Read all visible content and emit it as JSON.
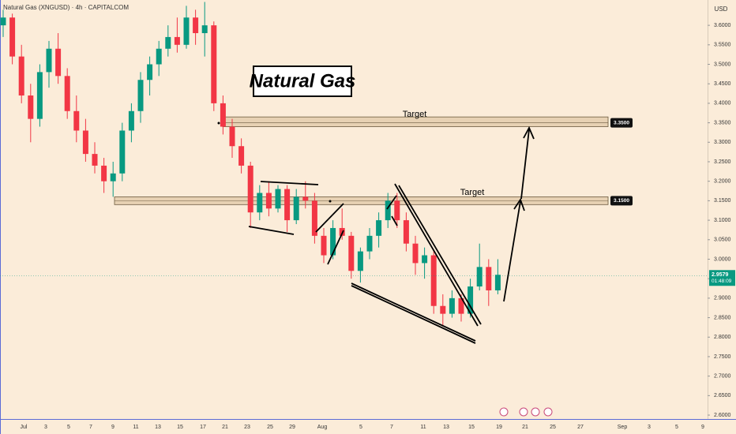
{
  "chart_data": {
    "type": "candlestick",
    "title": "Natural Gas (XNGUSD) · 4h · CAPITALCOM",
    "currency": "USD",
    "annotation": "Natural Gas",
    "up_color": "#089981",
    "down_color": "#f23645",
    "ylim": [
      2.592,
      3.665
    ],
    "yticks": [
      {
        "value": 2.6,
        "label": "2.6000"
      },
      {
        "value": 2.65,
        "label": "2.6500"
      },
      {
        "value": 2.7,
        "label": "2.7000"
      },
      {
        "value": 2.75,
        "label": "2.7500"
      },
      {
        "value": 2.8,
        "label": "2.8000"
      },
      {
        "value": 2.85,
        "label": "2.8500"
      },
      {
        "value": 2.9,
        "label": "2.9000"
      },
      {
        "value": 2.95,
        "label": "2.9500"
      },
      {
        "value": 3.0,
        "label": "3.0000"
      },
      {
        "value": 3.05,
        "label": "3.0500"
      },
      {
        "value": 3.1,
        "label": "3.1000"
      },
      {
        "value": 3.15,
        "label": "3.1500"
      },
      {
        "value": 3.2,
        "label": "3.2000"
      },
      {
        "value": 3.25,
        "label": "3.2500"
      },
      {
        "value": 3.3,
        "label": "3.3000"
      },
      {
        "value": 3.35,
        "label": "3.3500"
      },
      {
        "value": 3.4,
        "label": "3.4000"
      },
      {
        "value": 3.45,
        "label": "3.4500"
      },
      {
        "value": 3.5,
        "label": "3.5000"
      },
      {
        "value": 3.55,
        "label": "3.5500"
      },
      {
        "value": 3.6,
        "label": "3.6000"
      }
    ],
    "xticks": [
      "Jul",
      "3",
      "5",
      "7",
      "9",
      "11",
      "13",
      "15",
      "17",
      "21",
      "23",
      "25",
      "29",
      "Aug",
      "5",
      "7",
      "11",
      "13",
      "15",
      "19",
      "21",
      "25",
      "27",
      "Sep",
      "3",
      "5",
      "9"
    ],
    "candles": [
      [
        3.6,
        3.64,
        3.57,
        3.62
      ],
      [
        3.62,
        3.63,
        3.5,
        3.52
      ],
      [
        3.52,
        3.55,
        3.4,
        3.42
      ],
      [
        3.42,
        3.45,
        3.3,
        3.36
      ],
      [
        3.36,
        3.5,
        3.34,
        3.48
      ],
      [
        3.48,
        3.56,
        3.44,
        3.54
      ],
      [
        3.54,
        3.58,
        3.45,
        3.47
      ],
      [
        3.47,
        3.49,
        3.36,
        3.38
      ],
      [
        3.38,
        3.42,
        3.3,
        3.33
      ],
      [
        3.33,
        3.36,
        3.25,
        3.27
      ],
      [
        3.27,
        3.3,
        3.22,
        3.24
      ],
      [
        3.24,
        3.26,
        3.17,
        3.2
      ],
      [
        3.2,
        3.25,
        3.16,
        3.22
      ],
      [
        3.22,
        3.35,
        3.2,
        3.33
      ],
      [
        3.33,
        3.4,
        3.3,
        3.38
      ],
      [
        3.38,
        3.48,
        3.35,
        3.46
      ],
      [
        3.46,
        3.52,
        3.42,
        3.5
      ],
      [
        3.5,
        3.56,
        3.47,
        3.54
      ],
      [
        3.54,
        3.6,
        3.52,
        3.57
      ],
      [
        3.57,
        3.62,
        3.53,
        3.55
      ],
      [
        3.55,
        3.65,
        3.54,
        3.62
      ],
      [
        3.62,
        3.64,
        3.55,
        3.58
      ],
      [
        3.58,
        3.66,
        3.52,
        3.6
      ],
      [
        3.6,
        3.61,
        3.38,
        3.4
      ],
      [
        3.4,
        3.42,
        3.32,
        3.34
      ],
      [
        3.34,
        3.36,
        3.26,
        3.29
      ],
      [
        3.29,
        3.31,
        3.22,
        3.24
      ],
      [
        3.24,
        3.25,
        3.08,
        3.12
      ],
      [
        3.12,
        3.19,
        3.1,
        3.17
      ],
      [
        3.17,
        3.2,
        3.11,
        3.13
      ],
      [
        3.13,
        3.19,
        3.12,
        3.18
      ],
      [
        3.18,
        3.19,
        3.07,
        3.1
      ],
      [
        3.1,
        3.18,
        3.09,
        3.16
      ],
      [
        3.16,
        3.2,
        3.13,
        3.15
      ],
      [
        3.15,
        3.17,
        3.04,
        3.06
      ],
      [
        3.06,
        3.08,
        2.99,
        3.01
      ],
      [
        3.01,
        3.1,
        3.0,
        3.08
      ],
      [
        3.08,
        3.13,
        3.05,
        3.06
      ],
      [
        3.06,
        3.07,
        2.95,
        2.97
      ],
      [
        2.97,
        3.03,
        2.94,
        3.02
      ],
      [
        3.02,
        3.08,
        3.0,
        3.06
      ],
      [
        3.06,
        3.12,
        3.03,
        3.1
      ],
      [
        3.1,
        3.17,
        3.08,
        3.15
      ],
      [
        3.15,
        3.17,
        3.08,
        3.1
      ],
      [
        3.1,
        3.12,
        3.02,
        3.04
      ],
      [
        3.04,
        3.06,
        2.96,
        2.99
      ],
      [
        2.99,
        3.03,
        2.95,
        3.01
      ],
      [
        3.01,
        3.02,
        2.86,
        2.88
      ],
      [
        2.88,
        2.91,
        2.83,
        2.86
      ],
      [
        2.86,
        2.92,
        2.85,
        2.9
      ],
      [
        2.9,
        2.91,
        2.84,
        2.86
      ],
      [
        2.86,
        2.95,
        2.85,
        2.93
      ],
      [
        2.93,
        3.04,
        2.92,
        2.98
      ],
      [
        2.98,
        3.0,
        2.88,
        2.92
      ],
      [
        2.92,
        3.0,
        2.91,
        2.96
      ]
    ],
    "last_price": {
      "value": 2.9579,
      "label": "2.9579"
    },
    "countdown": "01:48:09",
    "zones": [
      {
        "label": "Target",
        "level": {
          "value": 3.35,
          "label": "3.3500"
        },
        "band": [
          3.34,
          3.365
        ]
      },
      {
        "label": "Target",
        "level": {
          "value": 3.15,
          "label": "3.1500"
        },
        "band": [
          3.14,
          3.16
        ]
      }
    ]
  }
}
